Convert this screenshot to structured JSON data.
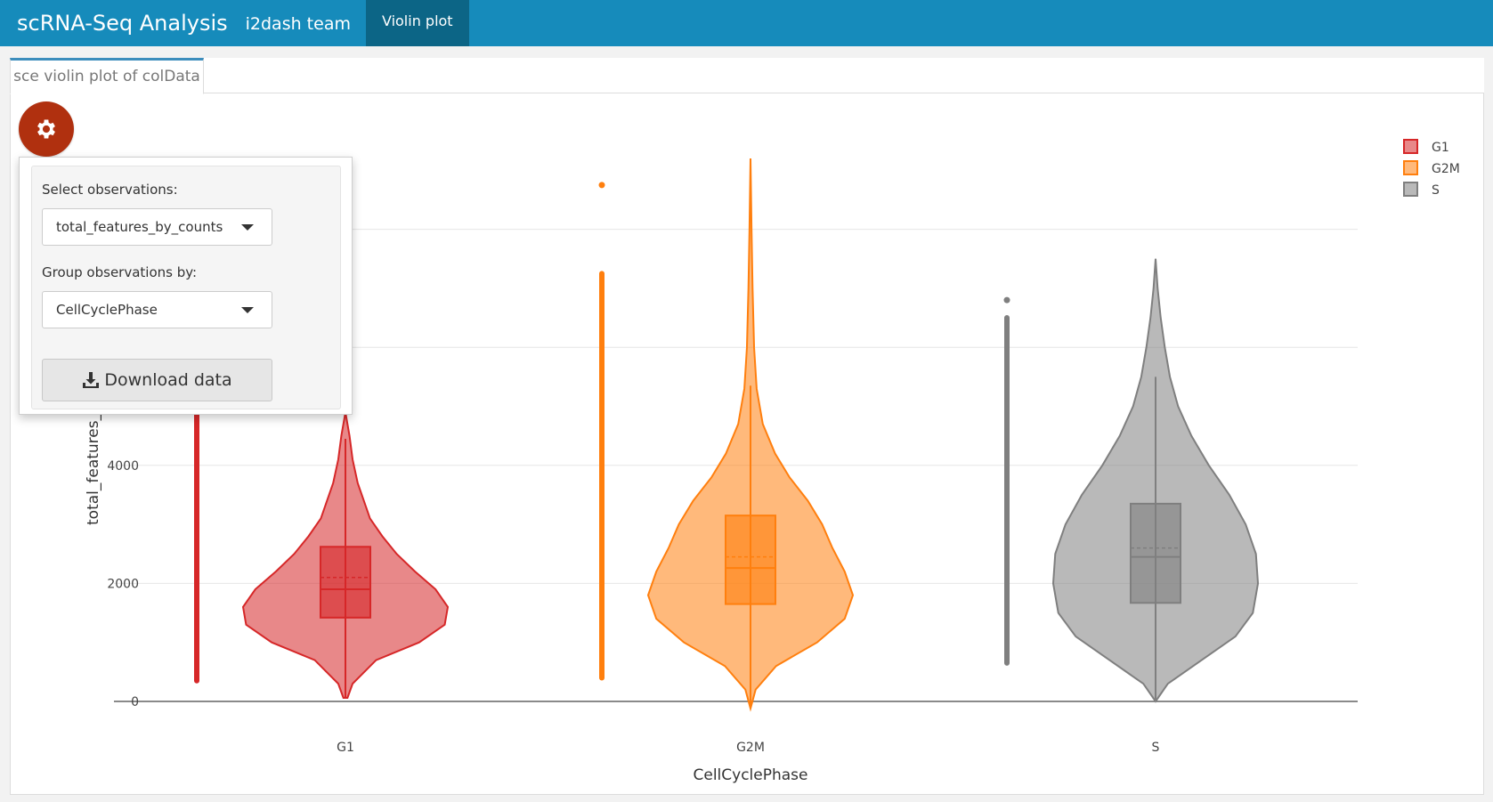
{
  "navbar": {
    "brand": "scRNA-Seq Analysis",
    "team": "i2dash team",
    "active_tab": "Violin plot"
  },
  "panel": {
    "tab_label": "sce violin plot of colData"
  },
  "controls": {
    "observations_label": "Select observations:",
    "observations_value": "total_features_by_counts",
    "group_label": "Group observations by:",
    "group_value": "CellCyclePhase",
    "download_label": "Download data",
    "settings_icon": "gear-icon",
    "download_icon": "download-icon"
  },
  "colors": {
    "navbar": "#168bbb",
    "navbar_active": "#0c6586",
    "gear_button": "#b0300f",
    "G1": "#d62728",
    "G2M": "#ff7f0e",
    "S": "#7f7f7f"
  },
  "chart_data": {
    "type": "violin",
    "xlabel": "CellCyclePhase",
    "ylabel": "total_features_by_counts",
    "categories": [
      "G1",
      "G2M",
      "S"
    ],
    "yticks": [
      0,
      2000,
      4000
    ],
    "grid": true,
    "legend_position": "top-right",
    "series": [
      {
        "name": "G1",
        "color": "#d62728",
        "min": 60,
        "q1": 1420,
        "median": 1900,
        "mean": 2100,
        "q3": 2620,
        "upper_fence": 4450,
        "max": 4900,
        "outliers_range": [
          350,
          7000
        ],
        "outliers": [],
        "density": [
          [
            60,
            0.02
          ],
          [
            300,
            0.07
          ],
          [
            700,
            0.3
          ],
          [
            1000,
            0.72
          ],
          [
            1300,
            0.97
          ],
          [
            1600,
            1.0
          ],
          [
            1900,
            0.88
          ],
          [
            2200,
            0.68
          ],
          [
            2500,
            0.5
          ],
          [
            2800,
            0.36
          ],
          [
            3100,
            0.24
          ],
          [
            3400,
            0.18
          ],
          [
            3700,
            0.12
          ],
          [
            4100,
            0.07
          ],
          [
            4500,
            0.04
          ],
          [
            4900,
            0.0
          ]
        ]
      },
      {
        "name": "G2M",
        "color": "#ff7f0e",
        "min": -120,
        "q1": 1650,
        "median": 2260,
        "mean": 2450,
        "q3": 3150,
        "upper_fence": 5350,
        "max": 9200,
        "outliers_range": [
          400,
          7250
        ],
        "outliers": [
          8750
        ],
        "density": [
          [
            -120,
            0.0
          ],
          [
            200,
            0.05
          ],
          [
            600,
            0.25
          ],
          [
            1000,
            0.65
          ],
          [
            1400,
            0.92
          ],
          [
            1800,
            1.0
          ],
          [
            2200,
            0.92
          ],
          [
            2600,
            0.8
          ],
          [
            3000,
            0.7
          ],
          [
            3400,
            0.56
          ],
          [
            3800,
            0.38
          ],
          [
            4200,
            0.24
          ],
          [
            4700,
            0.12
          ],
          [
            5300,
            0.06
          ],
          [
            6000,
            0.035
          ],
          [
            7000,
            0.02
          ],
          [
            8000,
            0.01
          ],
          [
            9200,
            0.0
          ]
        ]
      },
      {
        "name": "S",
        "color": "#7f7f7f",
        "min": 0,
        "q1": 1670,
        "median": 2450,
        "mean": 2600,
        "q3": 3350,
        "upper_fence": 5500,
        "max": 7500,
        "outliers_range": [
          650,
          6500
        ],
        "outliers": [
          6800
        ],
        "density": [
          [
            0,
            0.0
          ],
          [
            300,
            0.12
          ],
          [
            700,
            0.45
          ],
          [
            1100,
            0.78
          ],
          [
            1500,
            0.95
          ],
          [
            2000,
            1.0
          ],
          [
            2500,
            0.98
          ],
          [
            3000,
            0.88
          ],
          [
            3500,
            0.72
          ],
          [
            4000,
            0.52
          ],
          [
            4500,
            0.35
          ],
          [
            5000,
            0.22
          ],
          [
            5500,
            0.14
          ],
          [
            6000,
            0.09
          ],
          [
            6500,
            0.05
          ],
          [
            7000,
            0.02
          ],
          [
            7500,
            0.0
          ]
        ]
      }
    ]
  }
}
